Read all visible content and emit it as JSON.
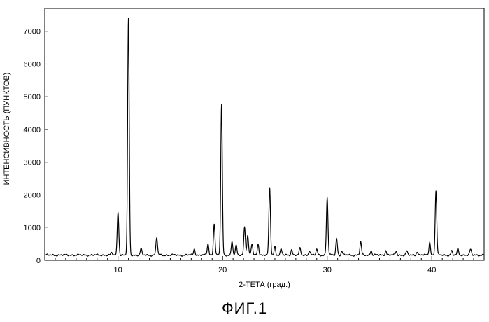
{
  "chart_data": {
    "type": "line",
    "xlabel": "2-ТЕТА (град.)",
    "ylabel": "ИНТЕНСИВНОСТЬ (ПУНКТОВ)",
    "xlim": [
      3,
      45
    ],
    "ylim": [
      0,
      7700
    ],
    "x_ticks": [
      10,
      20,
      30,
      40
    ],
    "y_ticks": [
      0,
      1000,
      2000,
      3000,
      4000,
      5000,
      6000,
      7000
    ],
    "grid": false,
    "baseline": 160,
    "peaks": [
      {
        "x": 9.4,
        "y": 230
      },
      {
        "x": 10.0,
        "y": 1500
      },
      {
        "x": 11.0,
        "y": 7400
      },
      {
        "x": 12.2,
        "y": 350
      },
      {
        "x": 13.7,
        "y": 700
      },
      {
        "x": 17.3,
        "y": 350
      },
      {
        "x": 18.6,
        "y": 500
      },
      {
        "x": 19.2,
        "y": 1130
      },
      {
        "x": 19.9,
        "y": 4760
      },
      {
        "x": 20.9,
        "y": 590
      },
      {
        "x": 21.3,
        "y": 440
      },
      {
        "x": 22.1,
        "y": 1040
      },
      {
        "x": 22.4,
        "y": 760
      },
      {
        "x": 22.8,
        "y": 490
      },
      {
        "x": 23.4,
        "y": 500
      },
      {
        "x": 24.5,
        "y": 2220
      },
      {
        "x": 25.0,
        "y": 420
      },
      {
        "x": 25.6,
        "y": 340
      },
      {
        "x": 26.6,
        "y": 330
      },
      {
        "x": 27.4,
        "y": 360
      },
      {
        "x": 28.3,
        "y": 300
      },
      {
        "x": 29.0,
        "y": 330
      },
      {
        "x": 30.0,
        "y": 1920
      },
      {
        "x": 30.9,
        "y": 660
      },
      {
        "x": 31.4,
        "y": 280
      },
      {
        "x": 33.2,
        "y": 550
      },
      {
        "x": 34.2,
        "y": 300
      },
      {
        "x": 35.6,
        "y": 300
      },
      {
        "x": 36.6,
        "y": 270
      },
      {
        "x": 37.6,
        "y": 280
      },
      {
        "x": 38.6,
        "y": 270
      },
      {
        "x": 39.8,
        "y": 560
      },
      {
        "x": 40.4,
        "y": 2130
      },
      {
        "x": 41.9,
        "y": 290
      },
      {
        "x": 42.5,
        "y": 340
      },
      {
        "x": 43.7,
        "y": 330
      }
    ]
  },
  "caption": "ФИГ.1"
}
